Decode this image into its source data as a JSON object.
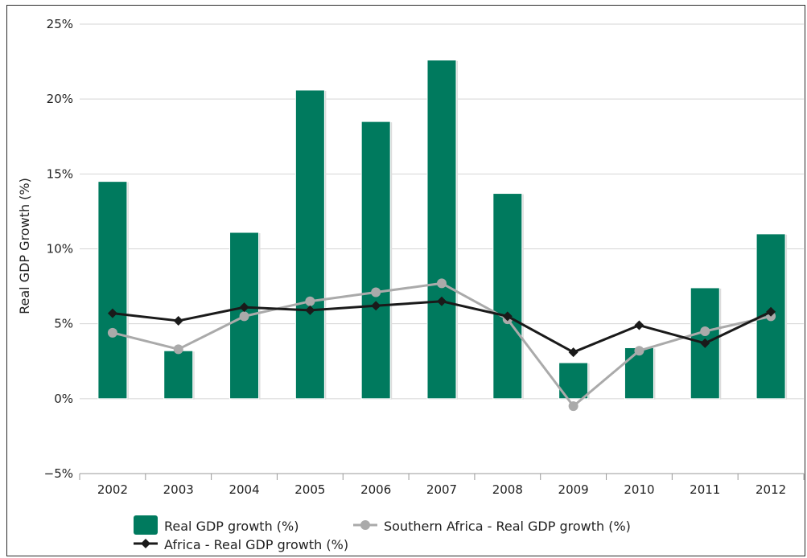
{
  "chart_data": {
    "type": "bar",
    "title": "",
    "xlabel": "",
    "ylabel": "Real GDP Growth (%)",
    "ylim": [
      -5,
      25
    ],
    "y_ticks": [
      25,
      20,
      15,
      10,
      5,
      0,
      -5
    ],
    "y_tick_labels": [
      "25%",
      "20%",
      "15%",
      "10%",
      "5%",
      "0%",
      "−5%"
    ],
    "categories": [
      "2002",
      "2003",
      "2004",
      "2005",
      "2006",
      "2007",
      "2008",
      "2009",
      "2010",
      "2011",
      "2012"
    ],
    "grid": true,
    "legend_position": "bottom-left",
    "series": [
      {
        "name": "Real GDP growth (%)",
        "type": "bar",
        "color": "#007a5e",
        "values": [
          14.5,
          3.2,
          11.1,
          20.6,
          18.5,
          22.6,
          13.7,
          2.4,
          3.4,
          7.4,
          11.0
        ]
      },
      {
        "name": "Southern Africa - Real GDP growth (%)",
        "type": "line",
        "marker": "circle",
        "color": "#aaaaaa",
        "values": [
          4.4,
          3.3,
          5.5,
          6.5,
          7.1,
          7.7,
          5.3,
          -0.5,
          3.2,
          4.5,
          5.5
        ]
      },
      {
        "name": "Africa - Real GDP growth (%)",
        "type": "line",
        "marker": "diamond",
        "color": "#1a1a1a",
        "values": [
          5.7,
          5.2,
          6.1,
          5.9,
          6.2,
          6.5,
          5.5,
          3.1,
          4.9,
          3.7,
          5.8
        ]
      }
    ]
  }
}
